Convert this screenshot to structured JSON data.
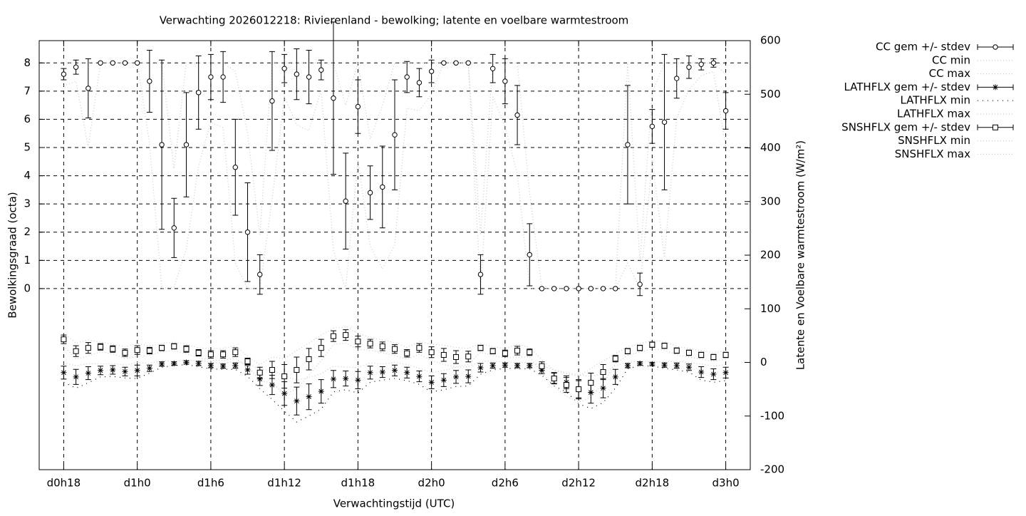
{
  "chart_data": {
    "type": "errorbar",
    "title": "Verwachting 2026012218: Rivierenland - bewolking; latente en voelbare warmtestroom",
    "x_label": "Verwachtingstijd (UTC)",
    "y_label": "Bewolkingsgraad (octa)",
    "y2_label": "Latente en Voelbare warmtestroom (W/m²)",
    "grid": true,
    "legend": "outside-top-right",
    "xlim": [
      16,
      74
    ],
    "xticks": [
      {
        "value": 18,
        "label": "d0h18"
      },
      {
        "value": 24,
        "label": "d1h0"
      },
      {
        "value": 30,
        "label": "d1h6"
      },
      {
        "value": 36,
        "label": "d1h12"
      },
      {
        "value": 42,
        "label": "d1h18"
      },
      {
        "value": 48,
        "label": "d2h0"
      },
      {
        "value": 54,
        "label": "d2h6"
      },
      {
        "value": 60,
        "label": "d2h12"
      },
      {
        "value": 66,
        "label": "d2h18"
      },
      {
        "value": 72,
        "label": "d3h0"
      }
    ],
    "ylim": [
      -6.42,
      8.79
    ],
    "yticks": [
      0,
      1,
      2,
      3,
      4,
      5,
      6,
      7,
      8
    ],
    "y2lim": [
      -200,
      600
    ],
    "y2ticks": [
      -200,
      -100,
      0,
      100,
      200,
      300,
      400,
      500,
      600
    ],
    "x": [
      18,
      19,
      20,
      21,
      22,
      23,
      24,
      25,
      26,
      27,
      28,
      29,
      30,
      31,
      32,
      33,
      34,
      35,
      36,
      37,
      38,
      39,
      40,
      41,
      42,
      43,
      44,
      45,
      46,
      47,
      48,
      49,
      50,
      51,
      52,
      53,
      54,
      55,
      56,
      57,
      58,
      59,
      60,
      61,
      62,
      63,
      64,
      65,
      66,
      67,
      68,
      69,
      70,
      71,
      72
    ],
    "series": [
      {
        "name": "CC gem +/- stdev",
        "style": "errorbar",
        "marker": "circle",
        "color": "#000000",
        "values": [
          7.6,
          7.85,
          7.1,
          8,
          8,
          8,
          8,
          7.35,
          5.1,
          2.15,
          5.1,
          6.95,
          7.5,
          7.5,
          4.3,
          2,
          0.5,
          6.65,
          7.8,
          7.6,
          7.5,
          7.75,
          6.75,
          3.1,
          6.45,
          3.4,
          3.6,
          5.45,
          7.5,
          7.3,
          7.7,
          8,
          8,
          8,
          0.5,
          7.8,
          7.35,
          6.15,
          1.2,
          0,
          0,
          0,
          0,
          0,
          0,
          0,
          5.1,
          0.15,
          5.75,
          5.9,
          7.45,
          7.85,
          7.95,
          8,
          6.3
        ],
        "errors": [
          0.2,
          0.25,
          1.05,
          0,
          0,
          0,
          0,
          1.1,
          3,
          1.05,
          1.85,
          1.3,
          0.8,
          0.9,
          1.7,
          1.75,
          0.7,
          1.75,
          0.5,
          0.9,
          0.95,
          0.35,
          2.7,
          1.7,
          0.95,
          0.95,
          1.45,
          1.95,
          0.55,
          0.5,
          0.4,
          0,
          0,
          0,
          0.7,
          0.5,
          0.8,
          1.05,
          1.1,
          0,
          0,
          0,
          0,
          0,
          0,
          0,
          2.1,
          0.4,
          0.6,
          2.4,
          0.7,
          0.4,
          0.2,
          0.15,
          0.65
        ]
      },
      {
        "name": "CC min",
        "style": "dotted",
        "color": "#c8c8c8",
        "dash": "1 3",
        "values": [
          7.2,
          7.35,
          5,
          8,
          8,
          8,
          8,
          5.15,
          0,
          0.05,
          1.4,
          4.35,
          5.9,
          5.7,
          0.9,
          0,
          0,
          3.15,
          6.8,
          5.8,
          5.6,
          7.05,
          1.35,
          0,
          4.55,
          1.5,
          0.7,
          1.55,
          6.4,
          6.3,
          6.9,
          8,
          8,
          8,
          0,
          6.8,
          5.75,
          4.05,
          0,
          0,
          0,
          0,
          0,
          0,
          0,
          0,
          0.9,
          0,
          4.55,
          1.1,
          6.05,
          7.05,
          7.55,
          7.7,
          5
        ]
      },
      {
        "name": "CC max",
        "style": "dotted",
        "color": "#c8c8c8",
        "dash": "1 3",
        "values": [
          8,
          8,
          8,
          8,
          8,
          8,
          8,
          8,
          8,
          4.25,
          8,
          8,
          8,
          8,
          7.7,
          5.5,
          1.9,
          8,
          8,
          8,
          8,
          8,
          8,
          6.5,
          8,
          5.3,
          6.5,
          8,
          8,
          8,
          8,
          8,
          8,
          8,
          1.9,
          8,
          8,
          8,
          3.4,
          0,
          0,
          0,
          0,
          0,
          0,
          0,
          8,
          0.95,
          6.95,
          8,
          8,
          8,
          8,
          8,
          7.6
        ]
      },
      {
        "name": "LATHFLX gem +/- stdev",
        "style": "errorbar",
        "marker": "star",
        "color": "#000000",
        "axis": "y2",
        "values": [
          -19,
          -27,
          -20,
          -15,
          -14,
          -17,
          -15,
          -11,
          -3,
          -2,
          0,
          -2,
          -6,
          -7,
          -6,
          -14,
          -31,
          -42,
          -58,
          -72,
          -64,
          -54,
          -31,
          -30,
          -33,
          -19,
          -18,
          -15,
          -19,
          -26,
          -37,
          -33,
          -27,
          -26,
          -10,
          -6,
          -5,
          -6,
          -6,
          -15,
          -29,
          -37,
          -50,
          -56,
          -48,
          -27,
          -6,
          -2,
          -3,
          -5,
          -6,
          -9,
          -18,
          -22,
          -19
        ],
        "errors": [
          12,
          14,
          12,
          8,
          8,
          8,
          10,
          6,
          4,
          3,
          3,
          4,
          4,
          4,
          5,
          8,
          12,
          18,
          22,
          26,
          24,
          22,
          16,
          14,
          16,
          12,
          10,
          10,
          10,
          10,
          12,
          12,
          12,
          12,
          8,
          5,
          4,
          4,
          4,
          6,
          10,
          12,
          18,
          20,
          18,
          14,
          4,
          3,
          3,
          4,
          5,
          6,
          10,
          10,
          10
        ]
      },
      {
        "name": "LATHFLX min",
        "style": "dotted",
        "color": "#000000",
        "dash": "1 6",
        "axis": "y2",
        "values": [
          -37,
          -48,
          -38,
          -27,
          -26,
          -29,
          -30,
          -20,
          -9,
          -6,
          -4,
          -8,
          -12,
          -13,
          -13,
          -26,
          -49,
          -69,
          -91,
          -111,
          -100,
          -87,
          -55,
          -51,
          -57,
          -37,
          -33,
          -30,
          -34,
          -41,
          -55,
          -51,
          -45,
          -44,
          -22,
          -14,
          -11,
          -12,
          -12,
          -24,
          -44,
          -55,
          -77,
          -86,
          -75,
          -48,
          -12,
          -6,
          -7,
          -11,
          -14,
          -18,
          -33,
          -37,
          -34
        ]
      },
      {
        "name": "LATHFLX max",
        "style": "dotted",
        "color": "#c8c8c8",
        "dash": "1 3",
        "axis": "y2",
        "values": [
          -1,
          -6,
          -2,
          -3,
          -2,
          -5,
          0,
          -2,
          3,
          2,
          4,
          4,
          0,
          -1,
          1,
          -2,
          -13,
          -15,
          -25,
          -33,
          -28,
          -21,
          -7,
          -9,
          -9,
          -1,
          -3,
          0,
          -4,
          -11,
          -19,
          -15,
          -9,
          -8,
          2,
          2,
          1,
          0,
          0,
          -6,
          -14,
          -19,
          -23,
          -26,
          -21,
          -6,
          0,
          2,
          1,
          1,
          2,
          0,
          -3,
          -7,
          -4
        ]
      },
      {
        "name": "SNSHFLX gem +/- stdev",
        "style": "errorbar",
        "marker": "square",
        "color": "#000000",
        "axis": "y2",
        "values": [
          43,
          21,
          27,
          29,
          25,
          18,
          23,
          22,
          27,
          30,
          25,
          18,
          15,
          15,
          19,
          2,
          -19,
          -14,
          -26,
          -14,
          6,
          27,
          49,
          51,
          39,
          35,
          30,
          25,
          17,
          27,
          19,
          14,
          10,
          11,
          27,
          21,
          17,
          22,
          19,
          -7,
          -30,
          -42,
          -50,
          -38,
          -18,
          7,
          21,
          27,
          33,
          31,
          22,
          18,
          14,
          10,
          14
        ],
        "errors": [
          8,
          10,
          10,
          6,
          6,
          7,
          8,
          6,
          5,
          5,
          6,
          6,
          7,
          7,
          8,
          6,
          10,
          16,
          22,
          24,
          20,
          16,
          10,
          10,
          10,
          8,
          8,
          8,
          7,
          8,
          10,
          12,
          12,
          10,
          5,
          5,
          6,
          8,
          6,
          8,
          10,
          14,
          16,
          18,
          14,
          6,
          5,
          5,
          5,
          5,
          5,
          5,
          5,
          5,
          5
        ]
      },
      {
        "name": "SNSHFLX min",
        "style": "dotted",
        "color": "#c8c8c8",
        "dash": "1 3",
        "axis": "y2",
        "values": [
          31,
          6,
          12,
          20,
          16,
          7,
          11,
          13,
          20,
          22,
          16,
          9,
          4,
          4,
          7,
          -7,
          -34,
          -38,
          -59,
          -50,
          -24,
          3,
          34,
          36,
          24,
          23,
          18,
          13,
          6,
          15,
          4,
          -4,
          -8,
          -4,
          19,
          13,
          8,
          10,
          10,
          -19,
          -45,
          -63,
          -74,
          -65,
          -39,
          -2,
          13,
          19,
          25,
          23,
          14,
          10,
          6,
          2,
          6
        ]
      },
      {
        "name": "SNSHFLX max",
        "style": "dotted",
        "color": "#c8c8c8",
        "dash": "1 3",
        "axis": "y2",
        "values": [
          55,
          36,
          42,
          38,
          34,
          29,
          35,
          31,
          35,
          38,
          34,
          27,
          26,
          26,
          31,
          11,
          -4,
          10,
          7,
          22,
          36,
          51,
          64,
          66,
          54,
          47,
          42,
          37,
          28,
          39,
          34,
          32,
          28,
          26,
          35,
          29,
          26,
          34,
          28,
          5,
          -15,
          -21,
          -26,
          -11,
          3,
          16,
          29,
          35,
          41,
          39,
          30,
          26,
          22,
          18,
          22
        ]
      }
    ]
  }
}
